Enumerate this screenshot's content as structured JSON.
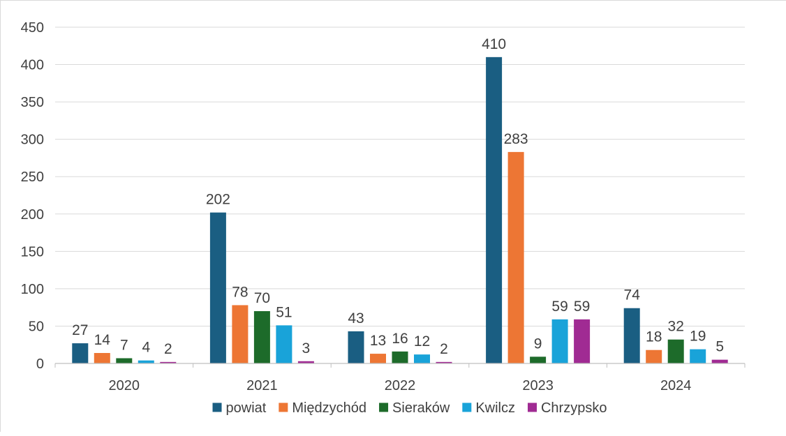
{
  "chart_data": {
    "type": "bar",
    "title": "",
    "xlabel": "",
    "ylabel": "",
    "ylim": [
      0,
      450
    ],
    "yticks": [
      0,
      50,
      100,
      150,
      200,
      250,
      300,
      350,
      400,
      450
    ],
    "grid": true,
    "legend_position": "bottom",
    "categories": [
      "2020",
      "2021",
      "2022",
      "2023",
      "2024"
    ],
    "series": [
      {
        "name": "powiat",
        "color": "#1a5e82",
        "values": [
          27,
          202,
          43,
          410,
          74
        ]
      },
      {
        "name": "Międzychód",
        "color": "#ed7634",
        "values": [
          14,
          78,
          13,
          283,
          18
        ]
      },
      {
        "name": "Sieraków",
        "color": "#1d6b2a",
        "values": [
          7,
          70,
          16,
          9,
          32
        ]
      },
      {
        "name": "Kwilcz",
        "color": "#19a3d9",
        "values": [
          4,
          51,
          12,
          59,
          19
        ]
      },
      {
        "name": "Chrzypsko",
        "color": "#a02b93",
        "values": [
          2,
          3,
          2,
          59,
          5
        ]
      }
    ]
  }
}
